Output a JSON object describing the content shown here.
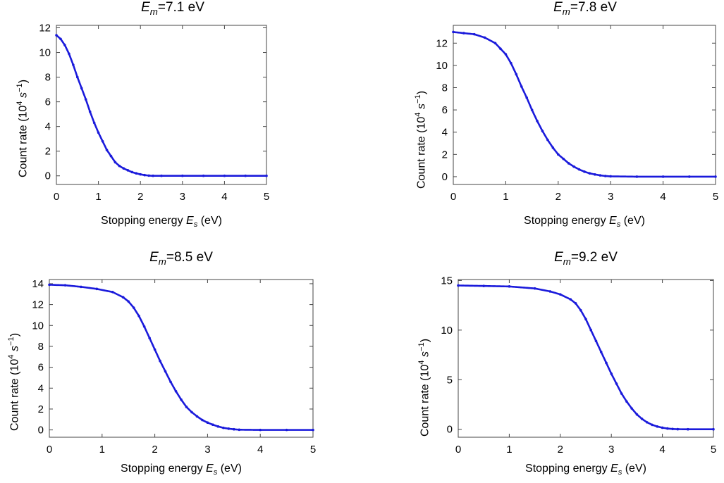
{
  "chart_data": [
    {
      "type": "scatter",
      "title_var": "E",
      "title_sub": "m",
      "title_rest": "=7.1 eV",
      "xlabel_pre": "Stopping energy ",
      "xlabel_var": "E",
      "xlabel_sub": "s",
      "xlabel_post": " (eV)",
      "ylabel_pre": "Count rate (10",
      "ylabel_sup": "4",
      "ylabel_var": " s",
      "ylabel_sup2": "−1",
      "ylabel_post": ")",
      "xlim": [
        0,
        5
      ],
      "ylim": [
        -0.7,
        12.2
      ],
      "xticks": [
        0,
        1,
        2,
        3,
        4,
        5
      ],
      "yticks": [
        0,
        2,
        4,
        6,
        8,
        10,
        12
      ],
      "color": "#1a1adb",
      "x": [
        0,
        0.1,
        0.2,
        0.3,
        0.4,
        0.5,
        0.6,
        0.7,
        0.8,
        0.9,
        1.0,
        1.1,
        1.2,
        1.3,
        1.4,
        1.5,
        1.6,
        1.7,
        1.8,
        1.9,
        2.0,
        2.1,
        2.2,
        2.3,
        2.5,
        3,
        3.5,
        4,
        4.5,
        5
      ],
      "y": [
        11.4,
        11.1,
        10.6,
        9.9,
        9.0,
        8.0,
        7.1,
        6.2,
        5.2,
        4.3,
        3.5,
        2.8,
        2.1,
        1.6,
        1.1,
        0.8,
        0.6,
        0.45,
        0.3,
        0.2,
        0.12,
        0.06,
        0.02,
        0,
        0,
        0,
        0,
        0,
        0,
        0
      ]
    },
    {
      "type": "scatter",
      "title_var": "E",
      "title_sub": "m",
      "title_rest": "=7.8 eV",
      "xlabel_pre": "Stopping energy ",
      "xlabel_var": "E",
      "xlabel_sub": "s",
      "xlabel_post": " (eV)",
      "ylabel_pre": "Count rate (10",
      "ylabel_sup": "4",
      "ylabel_var": " s",
      "ylabel_sup2": "−1",
      "ylabel_post": ")",
      "xlim": [
        0,
        5
      ],
      "ylim": [
        -0.7,
        13.6
      ],
      "xticks": [
        0,
        1,
        2,
        3,
        4,
        5
      ],
      "yticks": [
        0,
        2,
        4,
        6,
        8,
        10,
        12
      ],
      "color": "#1a1adb",
      "x": [
        0,
        0.2,
        0.4,
        0.6,
        0.8,
        0.9,
        1.0,
        1.1,
        1.2,
        1.3,
        1.4,
        1.5,
        1.6,
        1.7,
        1.8,
        1.9,
        2.0,
        2.1,
        2.2,
        2.3,
        2.4,
        2.5,
        2.6,
        2.7,
        2.8,
        2.9,
        3.0,
        3.5,
        4,
        4.5,
        5
      ],
      "y": [
        13.0,
        12.9,
        12.8,
        12.5,
        12.0,
        11.5,
        11.0,
        10.2,
        9.2,
        8.1,
        7.1,
        6.0,
        5.0,
        4.1,
        3.3,
        2.6,
        2.0,
        1.6,
        1.2,
        0.9,
        0.65,
        0.45,
        0.3,
        0.2,
        0.12,
        0.06,
        0.03,
        0,
        0,
        0,
        0
      ]
    },
    {
      "type": "scatter",
      "title_var": "E",
      "title_sub": "m",
      "title_rest": "=8.5 eV",
      "xlabel_pre": "Stopping energy ",
      "xlabel_var": "E",
      "xlabel_sub": "s",
      "xlabel_post": " (eV)",
      "ylabel_pre": "Count rate (10",
      "ylabel_sup": "4",
      "ylabel_var": " s",
      "ylabel_sup2": "−1",
      "ylabel_post": ")",
      "xlim": [
        0,
        5
      ],
      "ylim": [
        -0.7,
        14.4
      ],
      "xticks": [
        0,
        1,
        2,
        3,
        4,
        5
      ],
      "yticks": [
        0,
        2,
        4,
        6,
        8,
        10,
        12,
        14
      ],
      "color": "#1a1adb",
      "x": [
        0,
        0.3,
        0.6,
        0.9,
        1.2,
        1.4,
        1.5,
        1.6,
        1.7,
        1.8,
        1.9,
        2.0,
        2.1,
        2.2,
        2.3,
        2.4,
        2.5,
        2.6,
        2.7,
        2.8,
        2.9,
        3.0,
        3.1,
        3.2,
        3.3,
        3.4,
        3.5,
        3.6,
        4,
        4.5,
        5
      ],
      "y": [
        13.9,
        13.85,
        13.7,
        13.5,
        13.2,
        12.7,
        12.3,
        11.7,
        10.9,
        9.9,
        8.8,
        7.7,
        6.6,
        5.6,
        4.6,
        3.7,
        2.9,
        2.2,
        1.7,
        1.3,
        0.95,
        0.7,
        0.5,
        0.33,
        0.2,
        0.12,
        0.06,
        0.02,
        0,
        0,
        0
      ]
    },
    {
      "type": "scatter",
      "title_var": "E",
      "title_sub": "m",
      "title_rest": "=9.2 eV",
      "xlabel_pre": "Stopping energy ",
      "xlabel_var": "E",
      "xlabel_sub": "s",
      "xlabel_post": " (eV)",
      "ylabel_pre": "Count rate (10",
      "ylabel_sup": "4",
      "ylabel_var": " s",
      "ylabel_sup2": "−1",
      "ylabel_post": ")",
      "xlim": [
        0,
        5
      ],
      "ylim": [
        -0.8,
        15.1
      ],
      "xticks": [
        0,
        1,
        2,
        3,
        4,
        5
      ],
      "yticks": [
        0,
        5,
        10,
        15
      ],
      "color": "#1a1adb",
      "x": [
        0,
        0.5,
        1.0,
        1.5,
        1.8,
        2.0,
        2.2,
        2.3,
        2.4,
        2.5,
        2.6,
        2.7,
        2.8,
        2.9,
        3.0,
        3.1,
        3.2,
        3.3,
        3.4,
        3.5,
        3.6,
        3.7,
        3.8,
        3.9,
        4.0,
        4.1,
        4.2,
        4.3,
        4.5,
        5
      ],
      "y": [
        14.5,
        14.45,
        14.4,
        14.2,
        13.9,
        13.6,
        13.1,
        12.7,
        12.0,
        11.1,
        10.0,
        8.9,
        7.8,
        6.7,
        5.6,
        4.6,
        3.6,
        2.8,
        2.1,
        1.5,
        1.05,
        0.7,
        0.45,
        0.28,
        0.16,
        0.08,
        0.03,
        0.01,
        0,
        0
      ]
    }
  ]
}
